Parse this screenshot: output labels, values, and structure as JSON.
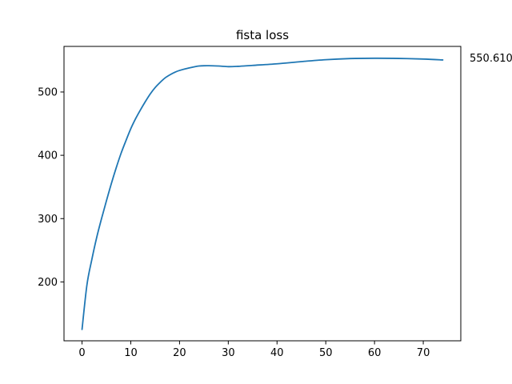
{
  "chart_data": {
    "type": "line",
    "title": "fista loss",
    "xlabel": "",
    "ylabel": "",
    "xlim": [
      -3.7,
      77.7
    ],
    "ylim": [
      107,
      572
    ],
    "x_ticks": [
      0,
      10,
      20,
      30,
      40,
      50,
      60,
      70
    ],
    "y_ticks": [
      200,
      300,
      400,
      500
    ],
    "grid": false,
    "annotation": "550.610",
    "series": [
      {
        "color": "#1f77b4",
        "points": [
          [
            0,
            125
          ],
          [
            1,
            195
          ],
          [
            2,
            235
          ],
          [
            3,
            270
          ],
          [
            4,
            300
          ],
          [
            5,
            328
          ],
          [
            6,
            355
          ],
          [
            7,
            380
          ],
          [
            8,
            403
          ],
          [
            9,
            423
          ],
          [
            10,
            442
          ],
          [
            11,
            458
          ],
          [
            12,
            472
          ],
          [
            13,
            485
          ],
          [
            14,
            497
          ],
          [
            15,
            507
          ],
          [
            16,
            515
          ],
          [
            17,
            522
          ],
          [
            18,
            527
          ],
          [
            19,
            531
          ],
          [
            20,
            534
          ],
          [
            22,
            538
          ],
          [
            24,
            541
          ],
          [
            26,
            541.5
          ],
          [
            28,
            541
          ],
          [
            30,
            540
          ],
          [
            32,
            540.5
          ],
          [
            35,
            542
          ],
          [
            40,
            544.5
          ],
          [
            45,
            548
          ],
          [
            50,
            551
          ],
          [
            55,
            552.8
          ],
          [
            60,
            553.3
          ],
          [
            65,
            553
          ],
          [
            70,
            552
          ],
          [
            74,
            550.61
          ]
        ]
      }
    ]
  }
}
